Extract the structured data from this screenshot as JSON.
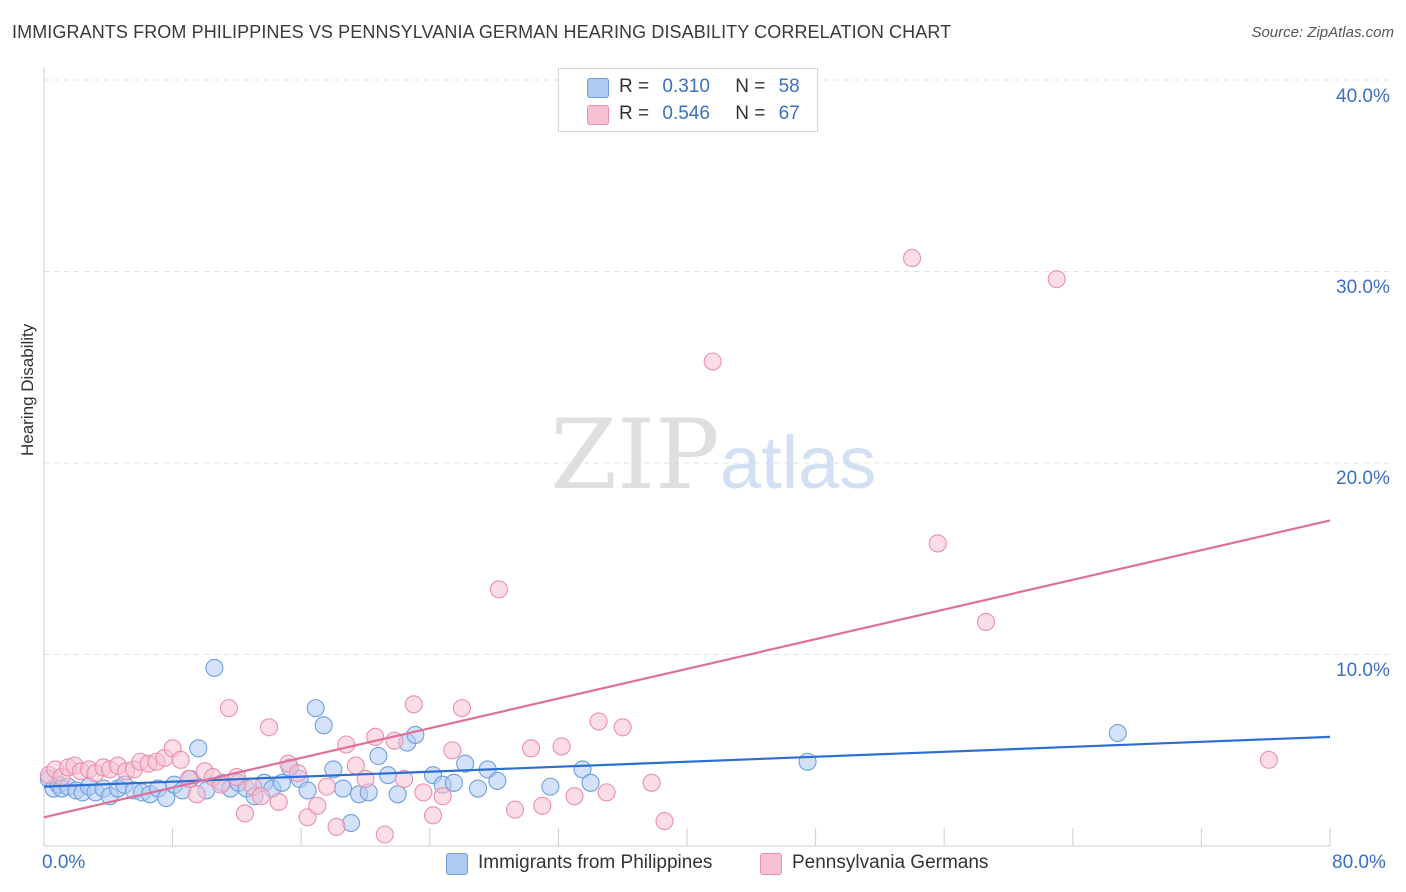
{
  "title": "IMMIGRANTS FROM PHILIPPINES VS PENNSYLVANIA GERMAN HEARING DISABILITY CORRELATION CHART",
  "source": "Source: ZipAtlas.com",
  "watermark": {
    "zip": "ZIP",
    "atlas": "atlas"
  },
  "legend": {
    "r_label": "R =",
    "n_label": "N =",
    "items": [
      {
        "name": "Immigrants from Philippines",
        "r": "0.310",
        "n": "58",
        "fill": "#aecbf2",
        "stroke": "#6f9fe0"
      },
      {
        "name": "Pennsylvania Germans",
        "r": "0.546",
        "n": "67",
        "fill": "#f8c1d1",
        "stroke": "#ec8fae"
      }
    ]
  },
  "chart_data": {
    "type": "scatter",
    "title": "IMMIGRANTS FROM PHILIPPINES VS PENNSYLVANIA GERMAN HEARING DISABILITY CORRELATION CHART",
    "xlabel": "",
    "ylabel": "Hearing Disability",
    "xlim": [
      0,
      80
    ],
    "ylim": [
      0,
      42
    ],
    "x_tick_labels": [
      "0.0%",
      "80.0%"
    ],
    "y_ticks": [
      10,
      20,
      30,
      40
    ],
    "y_tick_labels": [
      "10.0%",
      "20.0%",
      "30.0%",
      "40.0%"
    ],
    "grid": true,
    "legend_position": "top-center",
    "series": [
      {
        "name": "Immigrants from Philippines",
        "color": "#6f9fe0",
        "trend_color": "#2d6fd0",
        "trend": {
          "x": [
            0,
            80
          ],
          "y": [
            3.1,
            5.7
          ]
        },
        "points": [
          [
            0.3,
            3.5
          ],
          [
            0.6,
            3.0
          ],
          [
            0.9,
            3.2
          ],
          [
            1.1,
            3.0
          ],
          [
            1.5,
            3.1
          ],
          [
            2.0,
            2.9
          ],
          [
            2.4,
            2.8
          ],
          [
            2.8,
            3.1
          ],
          [
            3.2,
            2.8
          ],
          [
            3.7,
            3.0
          ],
          [
            4.1,
            2.6
          ],
          [
            4.6,
            3.0
          ],
          [
            5.0,
            3.2
          ],
          [
            5.6,
            2.9
          ],
          [
            6.1,
            2.8
          ],
          [
            6.6,
            2.7
          ],
          [
            7.1,
            3.0
          ],
          [
            7.6,
            2.5
          ],
          [
            8.1,
            3.2
          ],
          [
            8.6,
            2.9
          ],
          [
            9.1,
            3.5
          ],
          [
            9.6,
            5.1
          ],
          [
            10.1,
            2.9
          ],
          [
            10.6,
            9.3
          ],
          [
            11.1,
            3.3
          ],
          [
            11.6,
            3.0
          ],
          [
            12.1,
            3.3
          ],
          [
            12.6,
            3.0
          ],
          [
            13.1,
            2.6
          ],
          [
            13.7,
            3.3
          ],
          [
            14.2,
            3.0
          ],
          [
            14.8,
            3.3
          ],
          [
            15.3,
            4.1
          ],
          [
            15.9,
            3.5
          ],
          [
            16.4,
            2.9
          ],
          [
            16.9,
            7.2
          ],
          [
            17.4,
            6.3
          ],
          [
            18.0,
            4.0
          ],
          [
            18.6,
            3.0
          ],
          [
            19.1,
            1.2
          ],
          [
            19.6,
            2.7
          ],
          [
            20.2,
            2.8
          ],
          [
            20.8,
            4.7
          ],
          [
            21.4,
            3.7
          ],
          [
            22.0,
            2.7
          ],
          [
            22.6,
            5.4
          ],
          [
            23.1,
            5.8
          ],
          [
            24.2,
            3.7
          ],
          [
            24.8,
            3.2
          ],
          [
            25.5,
            3.3
          ],
          [
            26.2,
            4.3
          ],
          [
            27.0,
            3.0
          ],
          [
            27.6,
            4.0
          ],
          [
            28.2,
            3.4
          ],
          [
            31.5,
            3.1
          ],
          [
            33.5,
            4.0
          ],
          [
            34.0,
            3.3
          ],
          [
            47.5,
            4.4
          ],
          [
            66.8,
            5.9
          ]
        ]
      },
      {
        "name": "Pennsylvania Germans",
        "color": "#ec8fae",
        "trend_color": "#e07097",
        "trend": {
          "x": [
            0,
            80
          ],
          "y": [
            1.5,
            17.0
          ]
        },
        "points": [
          [
            0.3,
            3.7
          ],
          [
            0.7,
            4.0
          ],
          [
            1.1,
            3.6
          ],
          [
            1.5,
            4.1
          ],
          [
            1.9,
            4.2
          ],
          [
            2.3,
            3.9
          ],
          [
            2.8,
            4.0
          ],
          [
            3.2,
            3.8
          ],
          [
            3.7,
            4.1
          ],
          [
            4.1,
            4.0
          ],
          [
            4.6,
            4.2
          ],
          [
            5.1,
            3.9
          ],
          [
            5.6,
            4.0
          ],
          [
            6.0,
            4.4
          ],
          [
            6.5,
            4.3
          ],
          [
            7.0,
            4.4
          ],
          [
            7.5,
            4.6
          ],
          [
            8.0,
            5.1
          ],
          [
            8.5,
            4.5
          ],
          [
            9.0,
            3.5
          ],
          [
            9.5,
            2.7
          ],
          [
            10.0,
            3.9
          ],
          [
            10.5,
            3.6
          ],
          [
            11.0,
            3.2
          ],
          [
            11.5,
            7.2
          ],
          [
            12.0,
            3.6
          ],
          [
            12.5,
            1.7
          ],
          [
            13.0,
            3.1
          ],
          [
            13.5,
            2.6
          ],
          [
            14.0,
            6.2
          ],
          [
            14.6,
            2.3
          ],
          [
            15.2,
            4.3
          ],
          [
            15.8,
            3.8
          ],
          [
            16.4,
            1.5
          ],
          [
            17.0,
            2.1
          ],
          [
            17.6,
            3.1
          ],
          [
            18.2,
            1.0
          ],
          [
            18.8,
            5.3
          ],
          [
            19.4,
            4.2
          ],
          [
            20.0,
            3.5
          ],
          [
            20.6,
            5.7
          ],
          [
            21.2,
            0.6
          ],
          [
            21.8,
            5.5
          ],
          [
            22.4,
            3.5
          ],
          [
            23.0,
            7.4
          ],
          [
            23.6,
            2.8
          ],
          [
            24.2,
            1.6
          ],
          [
            24.8,
            2.6
          ],
          [
            25.4,
            5.0
          ],
          [
            26.0,
            7.2
          ],
          [
            28.3,
            13.4
          ],
          [
            29.3,
            1.9
          ],
          [
            30.3,
            5.1
          ],
          [
            31.0,
            2.1
          ],
          [
            32.2,
            5.2
          ],
          [
            33.0,
            2.6
          ],
          [
            34.5,
            6.5
          ],
          [
            35.0,
            2.8
          ],
          [
            36.0,
            6.2
          ],
          [
            37.8,
            3.3
          ],
          [
            38.6,
            1.3
          ],
          [
            41.6,
            25.3
          ],
          [
            54.0,
            30.7
          ],
          [
            55.6,
            15.8
          ],
          [
            58.6,
            11.7
          ],
          [
            63.0,
            29.6
          ],
          [
            76.2,
            4.5
          ]
        ]
      }
    ]
  }
}
